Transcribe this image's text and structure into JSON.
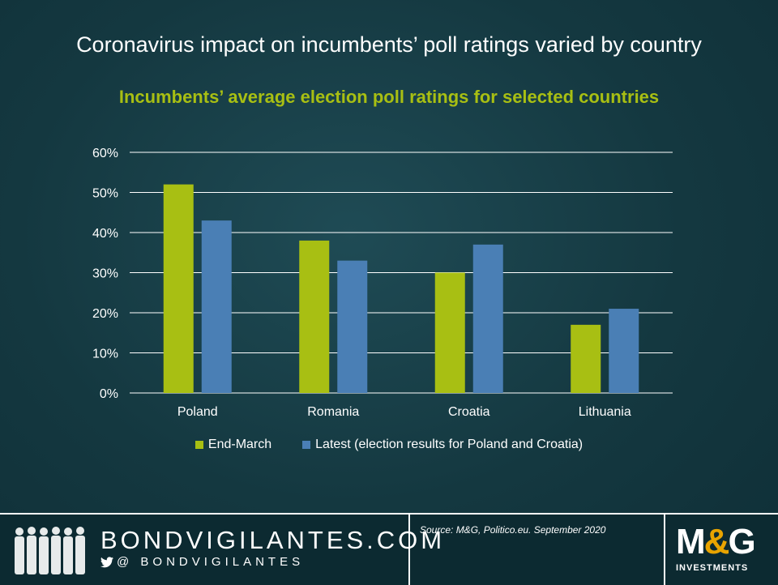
{
  "slide_title": "Coronavirus impact on incumbents’ poll ratings varied by country",
  "chart_data": {
    "type": "bar",
    "title": "Incumbents’ average election poll ratings for selected countries",
    "categories": [
      "Poland",
      "Romania",
      "Croatia",
      "Lithuania"
    ],
    "series": [
      {
        "name": "End-March",
        "values": [
          52,
          38,
          30,
          17
        ],
        "color": "#a8bf13"
      },
      {
        "name": "Latest (election results for Poland and Croatia)",
        "values": [
          43,
          33,
          37,
          21
        ],
        "color": "#4a7fb5"
      }
    ],
    "ylim": [
      0,
      60
    ],
    "yticks": [
      "0%",
      "10%",
      "20%",
      "30%",
      "40%",
      "50%",
      "60%"
    ],
    "grid": true,
    "legend_position": "bottom"
  },
  "footer": {
    "site": "BONDVIGILANTES.COM",
    "handle": "@ BONDVIGILANTES",
    "source": "Source: M&G, Politico.eu. September 2020",
    "logo_main_left": "M",
    "logo_amp": "&",
    "logo_main_right": "G",
    "logo_sub": "INVESTMENTS"
  },
  "icons": [
    "people-silhouettes-icon",
    "twitter-bird-icon"
  ]
}
